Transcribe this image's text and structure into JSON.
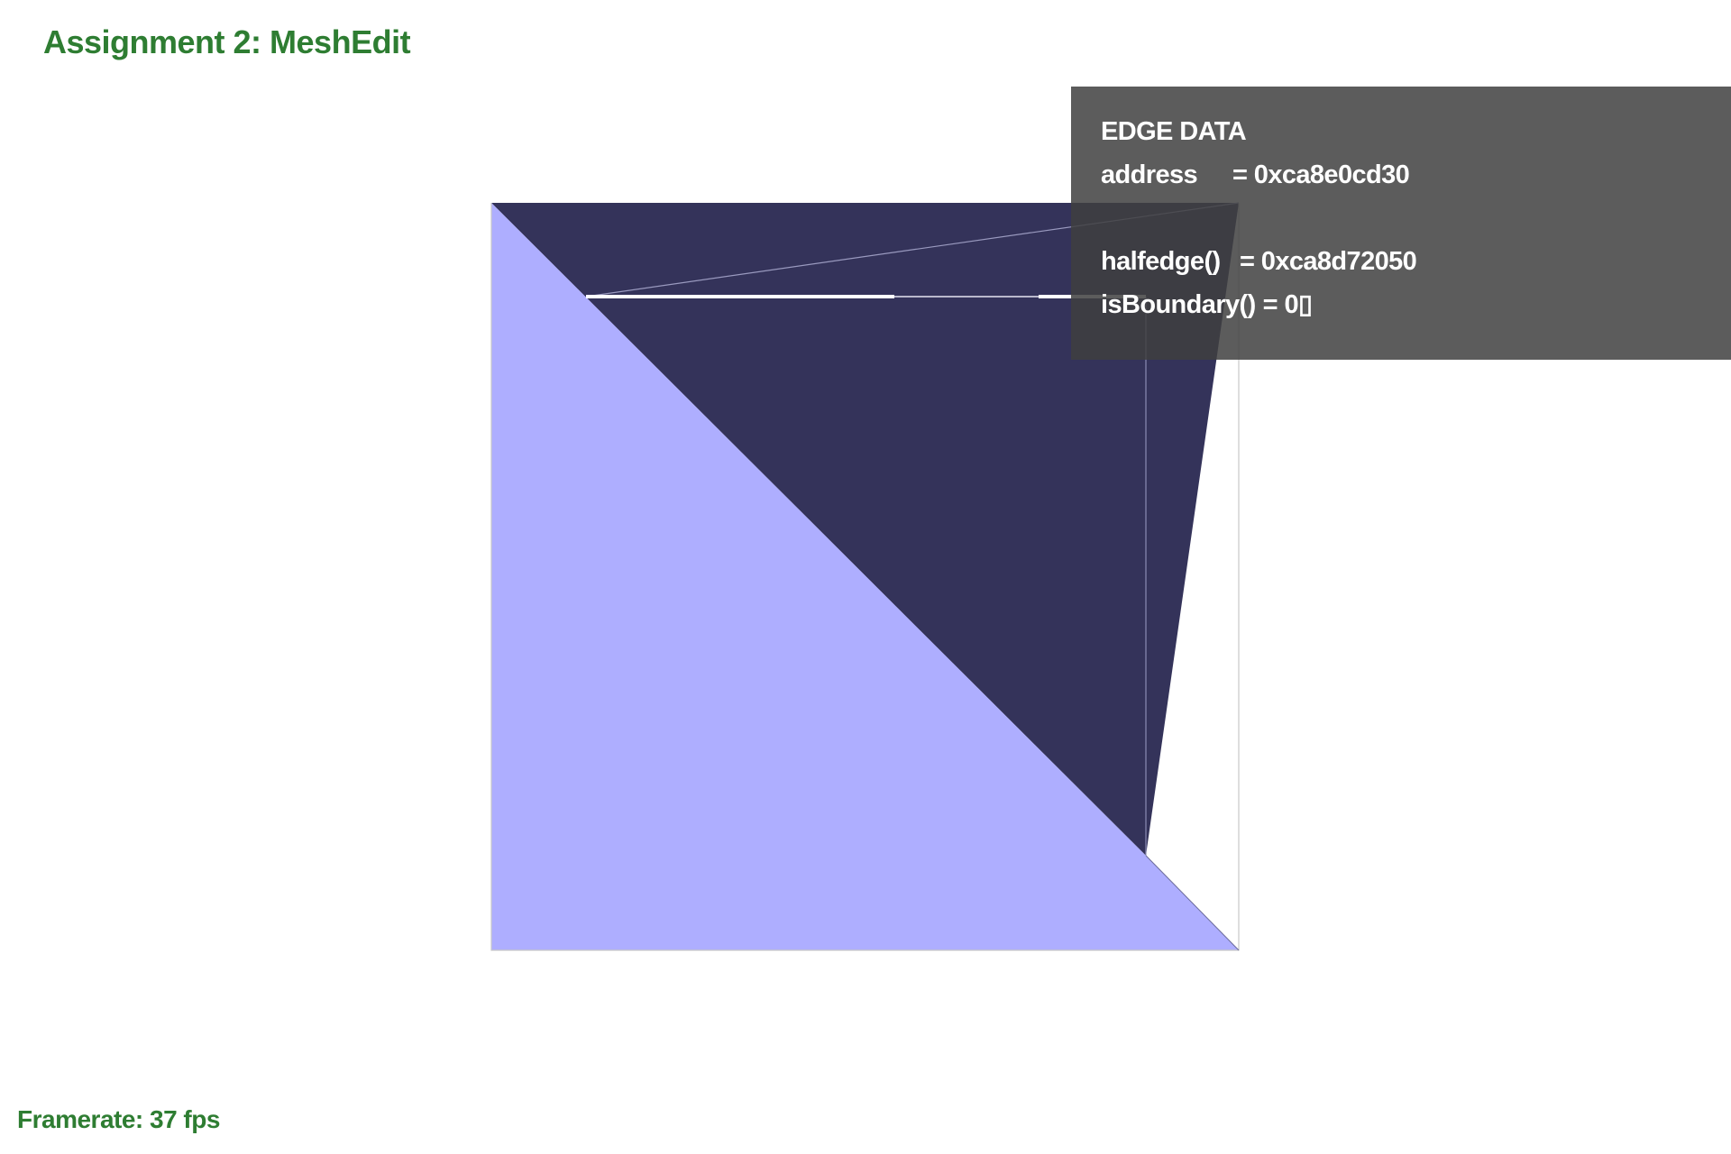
{
  "app": {
    "title": "Assignment 2: MeshEdit"
  },
  "status": {
    "framerate": "Framerate: 37 fps"
  },
  "colors": {
    "title_green": "#2e7d32",
    "face_light": "#aeaeff",
    "face_dark": "#34335a",
    "panel_bg": "#404040",
    "selected_edge": "#ffffff"
  },
  "edge_info": {
    "heading": "EDGE DATA",
    "address_key": "address",
    "address_value": "= 0xca8e0cd30",
    "halfedge_key": "halfedge()",
    "halfedge_value": "= 0xca8d72050",
    "boundary_key": "isBoundary()",
    "boundary_value": "= 0▯"
  }
}
